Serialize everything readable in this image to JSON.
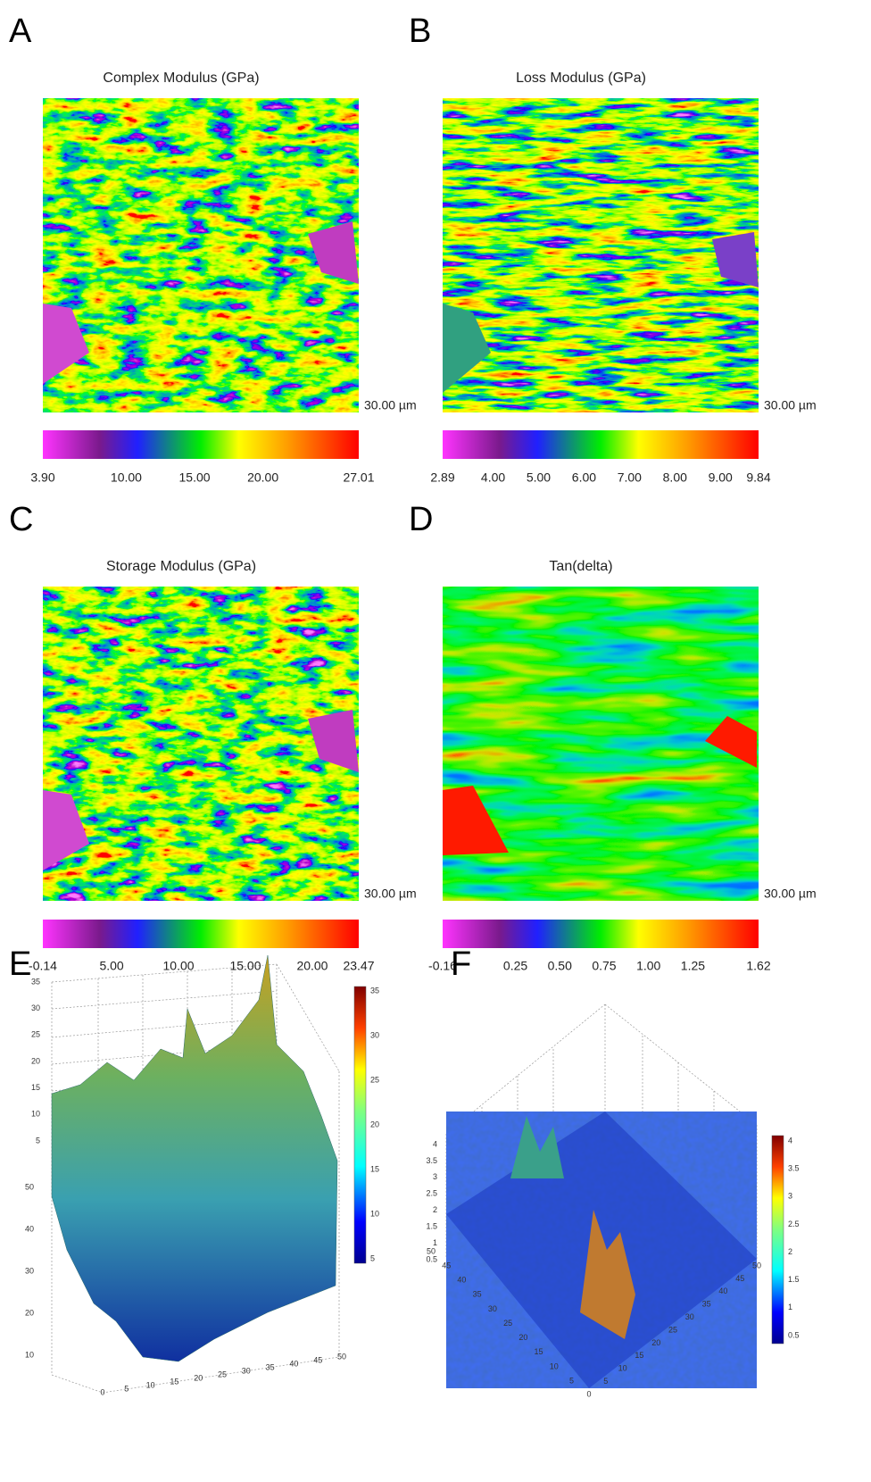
{
  "panels_2d": [
    {
      "letter": "A",
      "title": "Complex Modulus (GPa)",
      "scale": "30.00 µm",
      "colorbar": [
        "3.90",
        "10.00",
        "15.00",
        "20.00",
        "27.01"
      ]
    },
    {
      "letter": "B",
      "title": "Loss Modulus (GPa)",
      "scale": "30.00 µm",
      "colorbar": [
        "2.89",
        "4.00",
        "5.00",
        "6.00",
        "7.00",
        "8.00",
        "9.00",
        "9.84"
      ]
    },
    {
      "letter": "C",
      "title": "Storage Modulus (GPa)",
      "scale": "30.00 µm",
      "colorbar": [
        "-0.14",
        "5.00",
        "10.00",
        "15.00",
        "20.00",
        "23.47"
      ]
    },
    {
      "letter": "D",
      "title": "Tan(delta)",
      "scale": "30.00 µm",
      "colorbar": [
        "-0.16",
        "0.25",
        "0.50",
        "0.75",
        "1.00",
        "1.25",
        "1.62"
      ]
    }
  ],
  "panels_3d": [
    {
      "letter": "E",
      "z_ticks": [
        "5",
        "10",
        "15",
        "20",
        "25",
        "30",
        "35"
      ],
      "colorbar_ticks": [
        "5",
        "10",
        "15",
        "20",
        "25",
        "30",
        "35"
      ],
      "left_ticks": [
        "10",
        "20",
        "30",
        "40",
        "50"
      ],
      "bottom_ticks": [
        "0",
        "5",
        "10",
        "15",
        "20",
        "25",
        "30",
        "35",
        "40",
        "45",
        "50"
      ]
    },
    {
      "letter": "F",
      "z_ticks": [
        "0.5",
        "1",
        "1.5",
        "2",
        "2.5",
        "3",
        "3.5",
        "4"
      ],
      "colorbar_ticks": [
        "0.5",
        "1",
        "1.5",
        "2",
        "2.5",
        "3",
        "3.5",
        "4"
      ],
      "left_ticks": [
        "5",
        "10",
        "15",
        "20",
        "25",
        "30",
        "35",
        "40",
        "45",
        "50"
      ],
      "bottom_ticks": [
        "0",
        "5",
        "10",
        "15",
        "20",
        "25",
        "30",
        "35",
        "40",
        "45",
        "50"
      ]
    }
  ]
}
